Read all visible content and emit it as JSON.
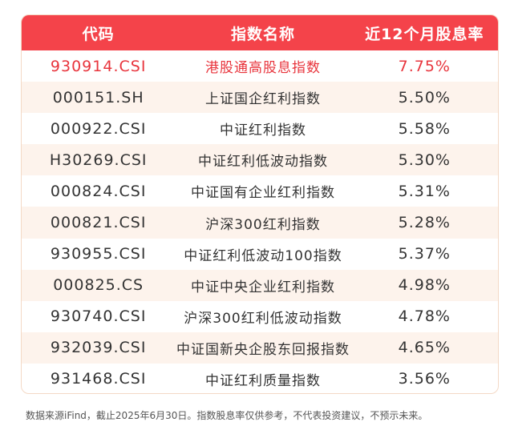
{
  "table": {
    "headers": [
      "代码",
      "指数名称",
      "近12个月股息率"
    ],
    "rows": [
      {
        "code": "930914.CSI",
        "name": "港股通高股息指数",
        "yield": "7.75%",
        "highlight": true
      },
      {
        "code": "000151.SH",
        "name": "上证国企红利指数",
        "yield": "5.50%"
      },
      {
        "code": "000922.CSI",
        "name": "中证红利指数",
        "yield": "5.58%"
      },
      {
        "code": "H30269.CSI",
        "name": "中证红利低波动指数",
        "yield": "5.30%"
      },
      {
        "code": "000824.CSI",
        "name": "中证国有企业红利指数",
        "yield": "5.31%"
      },
      {
        "code": "000821.CSI",
        "name": "沪深300红利指数",
        "yield": "5.28%"
      },
      {
        "code": "930955.CSI",
        "name": "中证红利低波动100指数",
        "yield": "5.37%"
      },
      {
        "code": "000825.CS",
        "name": "中证中央企业红利指数",
        "yield": "4.98%"
      },
      {
        "code": "930740.CSI",
        "name": "沪深300红利低波动指数",
        "yield": "4.78%"
      },
      {
        "code": "932039.CSI",
        "name": "中证国新央企股东回报指数",
        "yield": "4.65%"
      },
      {
        "code": "931468.CSI",
        "name": "中证红利质量指数",
        "yield": "3.56%"
      }
    ]
  },
  "footnote": "数据来源iFind，截止2025年6月30日。指数股息率仅供参考，不代表投资建议，不预示未来。",
  "colors": {
    "header_bg": "#f4434a",
    "alt_row_bg": "#fdf3ec",
    "highlight_text": "#e8343c"
  }
}
